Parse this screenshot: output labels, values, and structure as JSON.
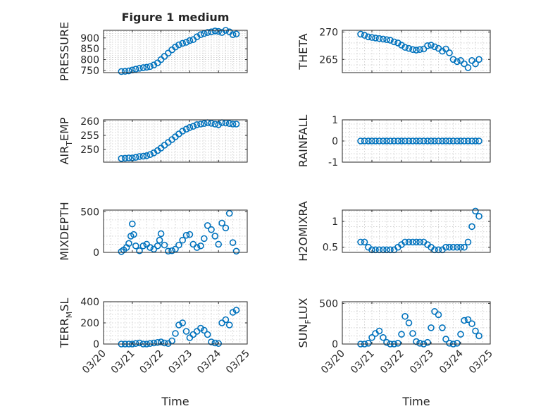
{
  "figure": {
    "title": "Figure 1 medium"
  },
  "colors": {
    "marker": "#0072BD",
    "axis": "#262626",
    "grid": "#c8c8c8"
  },
  "chart_data": [
    {
      "type": "scatter",
      "ylabel": "PRESSURE",
      "xlabel": "",
      "ylim": [
        740,
        935
      ],
      "yticks": [
        750,
        800,
        850,
        900
      ],
      "xlim": [
        0,
        5
      ],
      "xticks": [
        0,
        1,
        2,
        3,
        4,
        5
      ],
      "grid": true,
      "marker": "circle",
      "x": [
        0.62,
        0.75,
        0.88,
        1.0,
        1.12,
        1.25,
        1.38,
        1.5,
        1.62,
        1.75,
        1.88,
        2.0,
        2.12,
        2.25,
        2.38,
        2.5,
        2.62,
        2.75,
        2.88,
        3.0,
        3.12,
        3.25,
        3.38,
        3.5,
        3.62,
        3.75,
        3.88,
        4.0,
        4.12,
        4.25,
        4.38,
        4.5,
        4.62
      ],
      "y": [
        745,
        746,
        748,
        752,
        756,
        760,
        763,
        765,
        768,
        775,
        785,
        800,
        815,
        830,
        845,
        858,
        868,
        875,
        880,
        888,
        892,
        905,
        915,
        920,
        925,
        928,
        932,
        930,
        925,
        935,
        928,
        915,
        918
      ]
    },
    {
      "type": "scatter",
      "ylabel": "THETA",
      "xlabel": "",
      "ylim": [
        262.6,
        270.3
      ],
      "yticks": [
        265,
        270
      ],
      "xlim": [
        0,
        5
      ],
      "xticks": [
        0,
        1,
        2,
        3,
        4,
        5
      ],
      "grid": true,
      "marker": "circle",
      "x": [
        0.62,
        0.75,
        0.88,
        1.0,
        1.12,
        1.25,
        1.38,
        1.5,
        1.62,
        1.75,
        1.88,
        2.0,
        2.12,
        2.25,
        2.38,
        2.5,
        2.62,
        2.75,
        2.88,
        3.0,
        3.12,
        3.25,
        3.38,
        3.5,
        3.62,
        3.75,
        3.88,
        4.0,
        4.12,
        4.25,
        4.38,
        4.5,
        4.62
      ],
      "y": [
        269.6,
        269.4,
        269.1,
        269.0,
        268.9,
        268.8,
        268.7,
        268.6,
        268.5,
        268.2,
        268.0,
        267.6,
        267.2,
        267.0,
        266.8,
        266.7,
        266.8,
        266.9,
        267.5,
        267.6,
        267.3,
        267.0,
        266.5,
        266.9,
        266.2,
        265.0,
        264.6,
        264.8,
        264.2,
        263.5,
        264.8,
        264.2,
        265.0
      ]
    },
    {
      "type": "scatter",
      "ylabel": "AIR_TEMP",
      "xlabel": "",
      "ylim": [
        245.5,
        260.5
      ],
      "yticks": [
        250,
        255,
        260
      ],
      "xlim": [
        0,
        5
      ],
      "xticks": [
        0,
        1,
        2,
        3,
        4,
        5
      ],
      "grid": true,
      "marker": "circle",
      "x": [
        0.62,
        0.75,
        0.88,
        1.0,
        1.12,
        1.25,
        1.38,
        1.5,
        1.62,
        1.75,
        1.88,
        2.0,
        2.12,
        2.25,
        2.38,
        2.5,
        2.62,
        2.75,
        2.88,
        3.0,
        3.12,
        3.25,
        3.38,
        3.5,
        3.62,
        3.75,
        3.88,
        4.0,
        4.12,
        4.25,
        4.38,
        4.5,
        4.62
      ],
      "y": [
        246.8,
        246.9,
        247.0,
        247.0,
        247.2,
        247.5,
        247.6,
        247.8,
        248.2,
        248.8,
        249.6,
        250.5,
        251.5,
        252.5,
        253.5,
        254.5,
        255.5,
        256.5,
        257.2,
        257.8,
        258.2,
        258.8,
        259.0,
        259.2,
        259.5,
        259.3,
        259.0,
        258.8,
        259.5,
        259.4,
        259.2,
        259.0,
        259.0
      ]
    },
    {
      "type": "scatter",
      "ylabel": "RAINFALL",
      "xlabel": "",
      "ylim": [
        -1,
        1
      ],
      "yticks": [
        -1,
        0,
        1
      ],
      "xlim": [
        0,
        5
      ],
      "xticks": [
        0,
        1,
        2,
        3,
        4,
        5
      ],
      "grid": true,
      "marker": "circle",
      "x": [
        0.62,
        0.75,
        0.88,
        1.0,
        1.12,
        1.25,
        1.38,
        1.5,
        1.62,
        1.75,
        1.88,
        2.0,
        2.12,
        2.25,
        2.38,
        2.5,
        2.62,
        2.75,
        2.88,
        3.0,
        3.12,
        3.25,
        3.38,
        3.5,
        3.62,
        3.75,
        3.88,
        4.0,
        4.12,
        4.25,
        4.38,
        4.5,
        4.62
      ],
      "y": [
        0,
        0,
        0,
        0,
        0,
        0,
        0,
        0,
        0,
        0,
        0,
        0,
        0,
        0,
        0,
        0,
        0,
        0,
        0,
        0,
        0,
        0,
        0,
        0,
        0,
        0,
        0,
        0,
        0,
        0,
        0,
        0,
        0
      ]
    },
    {
      "type": "scatter",
      "ylabel": "MIXDEPTH",
      "xlabel": "",
      "ylim": [
        0,
        520
      ],
      "yticks": [
        0,
        500
      ],
      "xlim": [
        0,
        5
      ],
      "xticks": [
        0,
        1,
        2,
        3,
        4,
        5
      ],
      "grid": true,
      "marker": "circle",
      "x": [
        0.62,
        0.7,
        0.8,
        0.88,
        0.95,
        1.0,
        1.05,
        1.12,
        1.25,
        1.38,
        1.5,
        1.62,
        1.75,
        1.88,
        1.95,
        2.0,
        2.12,
        2.25,
        2.38,
        2.5,
        2.62,
        2.75,
        2.88,
        3.0,
        3.12,
        3.25,
        3.38,
        3.5,
        3.62,
        3.75,
        3.88,
        4.0,
        4.12,
        4.25,
        4.38,
        4.5,
        4.62
      ],
      "y": [
        10,
        30,
        60,
        110,
        200,
        350,
        220,
        80,
        20,
        80,
        100,
        60,
        40,
        80,
        150,
        230,
        90,
        15,
        20,
        40,
        90,
        150,
        210,
        220,
        100,
        60,
        80,
        170,
        330,
        280,
        200,
        100,
        360,
        300,
        480,
        120,
        15
      ]
    },
    {
      "type": "scatter",
      "ylabel": "H2OMIXRA",
      "xlabel": "",
      "ylim": [
        0.4,
        1.22
      ],
      "yticks": [
        0.5,
        1
      ],
      "xlim": [
        0,
        5
      ],
      "xticks": [
        0,
        1,
        2,
        3,
        4,
        5
      ],
      "grid": true,
      "marker": "circle",
      "x": [
        0.62,
        0.75,
        0.88,
        1.0,
        1.12,
        1.25,
        1.38,
        1.5,
        1.62,
        1.75,
        1.88,
        2.0,
        2.12,
        2.25,
        2.38,
        2.5,
        2.62,
        2.75,
        2.88,
        3.0,
        3.12,
        3.25,
        3.38,
        3.5,
        3.62,
        3.75,
        3.88,
        4.0,
        4.12,
        4.25,
        4.38,
        4.5,
        4.62
      ],
      "y": [
        0.6,
        0.6,
        0.5,
        0.45,
        0.45,
        0.45,
        0.45,
        0.45,
        0.45,
        0.45,
        0.5,
        0.55,
        0.6,
        0.6,
        0.6,
        0.6,
        0.6,
        0.6,
        0.55,
        0.5,
        0.45,
        0.45,
        0.45,
        0.5,
        0.5,
        0.5,
        0.5,
        0.5,
        0.5,
        0.6,
        0.9,
        1.2,
        1.1
      ]
    },
    {
      "type": "scatter",
      "ylabel": "TERR_MSL",
      "xlabel": "Time",
      "ylim": [
        0,
        400
      ],
      "yticks": [
        0,
        200,
        400
      ],
      "xlim": [
        0,
        5
      ],
      "xticks": [
        0,
        1,
        2,
        3,
        4,
        5
      ],
      "xticklabels": [
        "03/20",
        "03/21",
        "03/22",
        "03/23",
        "03/24",
        "03/25"
      ],
      "grid": true,
      "marker": "circle",
      "x": [
        0.62,
        0.75,
        0.88,
        1.0,
        1.12,
        1.25,
        1.38,
        1.5,
        1.62,
        1.75,
        1.88,
        2.0,
        2.12,
        2.25,
        2.38,
        2.5,
        2.62,
        2.75,
        2.88,
        3.0,
        3.12,
        3.25,
        3.38,
        3.5,
        3.62,
        3.75,
        3.88,
        4.0,
        4.12,
        4.25,
        4.38,
        4.5,
        4.62
      ],
      "y": [
        0,
        0,
        0,
        0,
        5,
        10,
        0,
        0,
        5,
        10,
        15,
        20,
        10,
        5,
        30,
        100,
        180,
        200,
        120,
        60,
        90,
        120,
        150,
        130,
        90,
        20,
        10,
        5,
        200,
        230,
        180,
        300,
        320
      ]
    },
    {
      "type": "scatter",
      "ylabel": "SUN_FLUX",
      "xlabel": "Time",
      "ylim": [
        0,
        520
      ],
      "yticks": [
        0,
        500
      ],
      "xlim": [
        0,
        5
      ],
      "xticks": [
        0,
        1,
        2,
        3,
        4,
        5
      ],
      "xticklabels": [
        "03/20",
        "03/21",
        "03/22",
        "03/23",
        "03/24",
        "03/25"
      ],
      "grid": true,
      "marker": "circle",
      "x": [
        0.62,
        0.75,
        0.88,
        1.0,
        1.12,
        1.25,
        1.38,
        1.5,
        1.62,
        1.75,
        1.88,
        2.0,
        2.12,
        2.25,
        2.38,
        2.5,
        2.62,
        2.75,
        2.88,
        3.0,
        3.12,
        3.25,
        3.38,
        3.5,
        3.62,
        3.75,
        3.88,
        4.0,
        4.12,
        4.25,
        4.38,
        4.5,
        4.62
      ],
      "y": [
        0,
        0,
        10,
        80,
        130,
        160,
        80,
        20,
        0,
        0,
        10,
        120,
        340,
        260,
        130,
        30,
        10,
        0,
        20,
        200,
        400,
        360,
        200,
        60,
        10,
        0,
        10,
        120,
        290,
        300,
        250,
        160,
        100
      ]
    }
  ]
}
